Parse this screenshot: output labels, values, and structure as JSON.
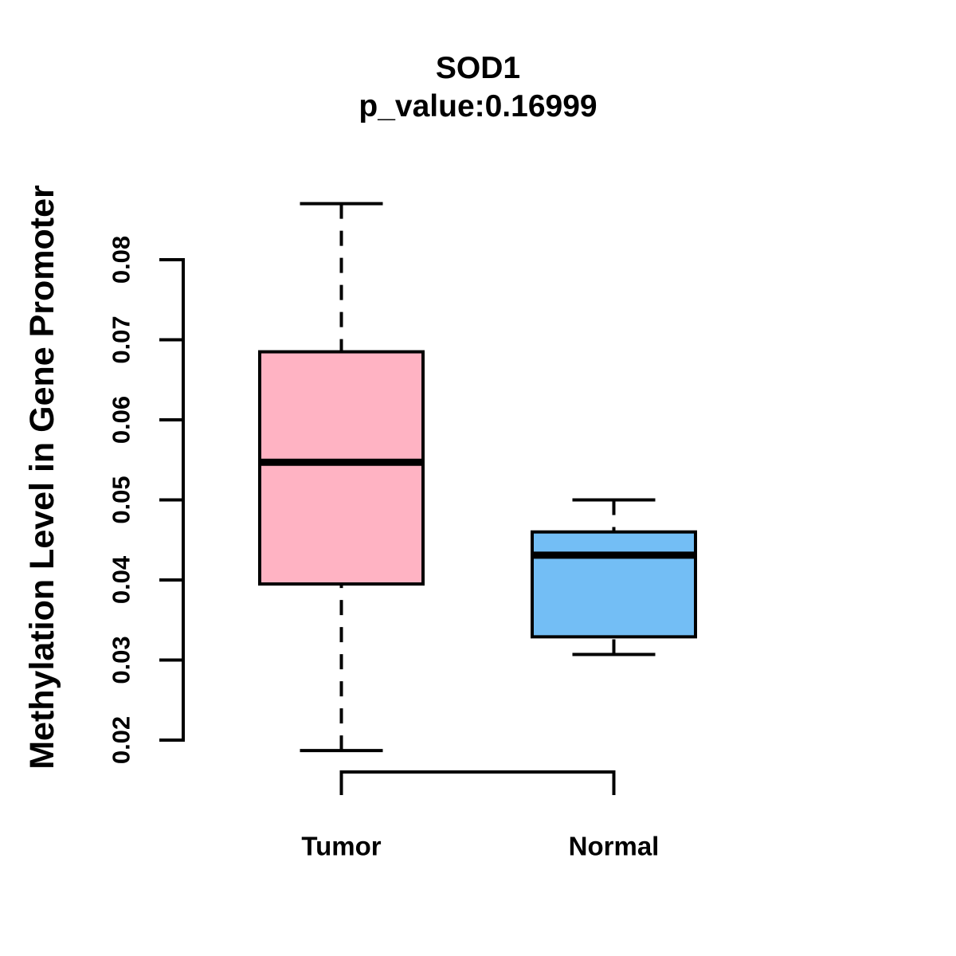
{
  "chart_data": {
    "type": "boxplot",
    "title": "SOD1",
    "subtitle": "p_value:0.16999",
    "ylabel": "Methylation Level in Gene Promoter",
    "xlabel": "",
    "categories": [
      "Tumor",
      "Normal"
    ],
    "ylim": [
      0.02,
      0.08
    ],
    "yticks": [
      0.02,
      0.03,
      0.04,
      0.05,
      0.06,
      0.07,
      0.08
    ],
    "ytick_labels": [
      "0.02",
      "0.03",
      "0.04",
      "0.05",
      "0.06",
      "0.07",
      "0.08"
    ],
    "grid": false,
    "legend": "none",
    "series": [
      {
        "name": "Tumor",
        "whisker_low": 0.0187,
        "q1": 0.0395,
        "median": 0.0547,
        "q3": 0.0685,
        "whisker_high": 0.087,
        "box_color": "#FFB3C3"
      },
      {
        "name": "Normal",
        "whisker_low": 0.0307,
        "q1": 0.0329,
        "median": 0.0431,
        "q3": 0.046,
        "whisker_high": 0.05,
        "box_color": "#73BEF5"
      }
    ],
    "colors": {
      "tumor_fill": "#FFB3C3",
      "normal_fill": "#73BEF5",
      "line": "#000000",
      "background": "#FFFFFF"
    }
  }
}
